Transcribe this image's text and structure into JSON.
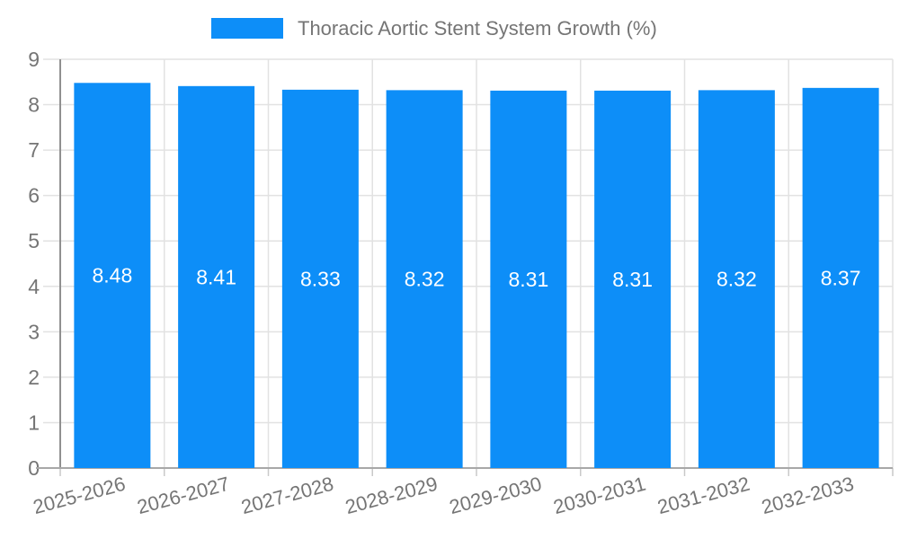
{
  "chart_data": {
    "type": "bar",
    "title": "Thoracic Aortic Stent System Growth (%)",
    "categories": [
      "2025-2026",
      "2026-2027",
      "2027-2028",
      "2028-2029",
      "2029-2030",
      "2030-2031",
      "2031-2032",
      "2032-2033"
    ],
    "values": [
      8.48,
      8.41,
      8.33,
      8.32,
      8.31,
      8.31,
      8.32,
      8.37
    ],
    "value_labels": [
      "8.48",
      "8.41",
      "8.33",
      "8.32",
      "8.31",
      "8.31",
      "8.32",
      "8.37"
    ],
    "xlabel": "",
    "ylabel": "",
    "ylim": [
      0,
      9
    ],
    "yticks": [
      0,
      1,
      2,
      3,
      4,
      5,
      6,
      7,
      8,
      9
    ],
    "grid": true,
    "legend_position": "top-center",
    "colors": {
      "bar": "#0d8ef8",
      "value_label": "#ffffff",
      "tick_label": "#757575",
      "legend_text": "#757575",
      "grid_line": "#e2e2e2",
      "y_axis_line": "#909090",
      "x_axis_line": "#a8a8a8",
      "x_tick_mark": "#c9c9c9",
      "background": "#ffffff"
    }
  }
}
